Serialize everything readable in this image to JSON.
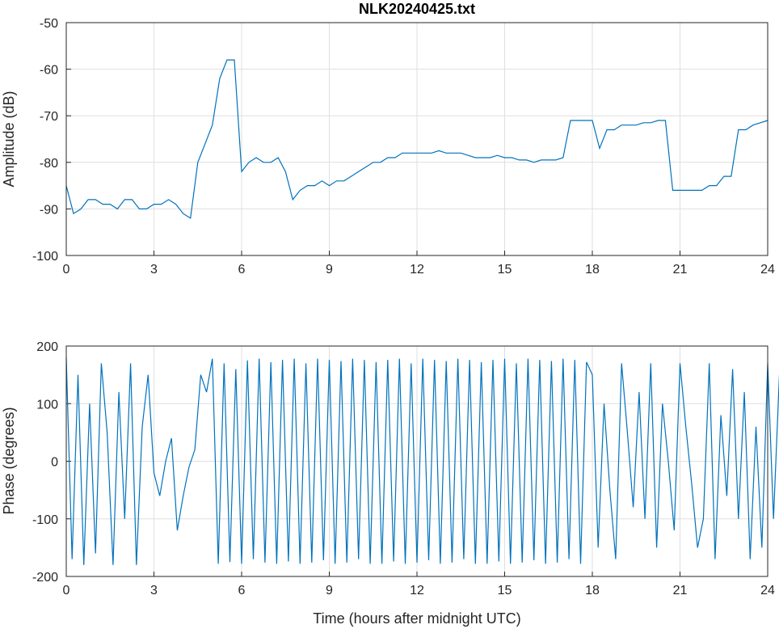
{
  "chart_data": [
    {
      "type": "line",
      "title": "NLK20240425.txt",
      "xlabel": "",
      "ylabel": "Amplitude (dB)",
      "xlim": [
        0,
        24
      ],
      "ylim": [
        -100,
        -50
      ],
      "xticks": [
        "0",
        "3",
        "6",
        "9",
        "12",
        "15",
        "18",
        "21",
        "24"
      ],
      "yticks": [
        "-50",
        "-60",
        "-70",
        "-80",
        "-90",
        "-100"
      ],
      "grid": true,
      "color": "#0072BD",
      "x_start": 0,
      "x_step": 0.25,
      "values": [
        -85,
        -91,
        -90,
        -88,
        -88,
        -89,
        -89,
        -90,
        -88,
        -88,
        -90,
        -90,
        -89,
        -89,
        -88,
        -89,
        -91,
        -92,
        -80,
        -76,
        -72,
        -62,
        -58,
        -58,
        -82,
        -80,
        -79,
        -80,
        -80,
        -79,
        -82,
        -88,
        -86,
        -85,
        -85,
        -84,
        -85,
        -84,
        -84,
        -83,
        -82,
        -81,
        -80,
        -80,
        -79,
        -79,
        -78,
        -78,
        -78,
        -78,
        -78,
        -77.5,
        -78,
        -78,
        -78,
        -78.5,
        -79,
        -79,
        -79,
        -78.5,
        -79,
        -79,
        -79.5,
        -79.5,
        -80,
        -79.5,
        -79.5,
        -79.5,
        -79,
        -71,
        -71,
        -71,
        -71,
        -77,
        -73,
        -73,
        -72,
        -72,
        -72,
        -71.5,
        -71.5,
        -71,
        -71,
        -86,
        -86,
        -86,
        -86,
        -86,
        -85,
        -85,
        -83,
        -83,
        -73,
        -73,
        -72,
        -71.5,
        -71
      ]
    },
    {
      "type": "line",
      "title": "",
      "xlabel": "Time (hours after midnight UTC)",
      "ylabel": "Phase (degrees)",
      "xlim": [
        0,
        24
      ],
      "ylim": [
        -200,
        200
      ],
      "xticks": [
        "0",
        "3",
        "6",
        "9",
        "12",
        "15",
        "18",
        "21",
        "24"
      ],
      "yticks": [
        "200",
        "100",
        "0",
        "-100",
        "-200"
      ],
      "grid": true,
      "color": "#0072BD",
      "x_start": 0,
      "x_step": 0.2,
      "values": [
        180,
        -170,
        150,
        -180,
        100,
        -160,
        170,
        50,
        -180,
        120,
        -100,
        170,
        -180,
        60,
        150,
        -20,
        -60,
        0,
        40,
        -120,
        -60,
        -10,
        20,
        150,
        120,
        178,
        -178,
        170,
        -175,
        160,
        -178,
        175,
        -170,
        178,
        -176,
        172,
        -178,
        176,
        -174,
        178,
        -178,
        170,
        -176,
        178,
        -172,
        176,
        -178,
        174,
        -176,
        178,
        -170,
        176,
        -178,
        172,
        -178,
        176,
        -174,
        178,
        -178,
        170,
        -176,
        178,
        -172,
        176,
        -178,
        174,
        -176,
        178,
        -170,
        176,
        -178,
        172,
        -178,
        176,
        -174,
        178,
        -178,
        170,
        -176,
        178,
        -172,
        176,
        -178,
        174,
        -176,
        178,
        -170,
        176,
        -178,
        172,
        150,
        -150,
        100,
        -50,
        -170,
        170,
        50,
        -80,
        120,
        -100,
        170,
        -150,
        100,
        0,
        -120,
        170,
        60,
        -40,
        -150,
        -100,
        170,
        -170,
        80,
        -60,
        160,
        -100,
        120,
        -170,
        60,
        -150,
        170,
        -100,
        150,
        0,
        -30
      ]
    }
  ]
}
